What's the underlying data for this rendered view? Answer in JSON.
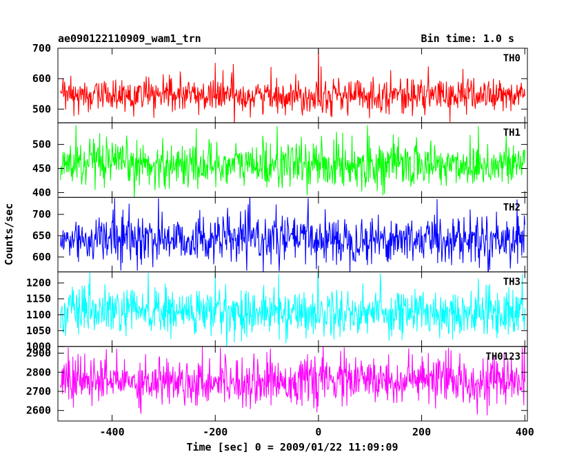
{
  "header": {
    "title": "ae090122110909_wam1_trn",
    "bin_time": "Bin time: 1.0 s"
  },
  "chart_data": {
    "type": "line",
    "title": "ae090122110909_wam1_trn",
    "xlabel": "Time [sec] 0 = 2009/01/22 11:09:09",
    "ylabel": "Counts/sec",
    "xlim": [
      -505,
      405
    ],
    "x_ticks": [
      -400,
      -200,
      0,
      200,
      400
    ],
    "x_start": -500,
    "x_end": 400,
    "x_step": 1,
    "grid": false,
    "panels": [
      {
        "name": "TH0",
        "color": "#ff0000",
        "ylim": [
          455,
          700
        ],
        "y_ticks": [
          500,
          600,
          700
        ],
        "mean": 545,
        "sigma": 28,
        "spikes": [
          {
            "x": -200,
            "y": 652
          },
          {
            "x": -165,
            "y": 648
          },
          {
            "x": 0,
            "y": 700
          },
          {
            "x": 5,
            "y": 640
          },
          {
            "x": 280,
            "y": 632
          },
          {
            "x": 140,
            "y": 628
          }
        ]
      },
      {
        "name": "TH1",
        "color": "#00ff00",
        "ylim": [
          390,
          545
        ],
        "y_ticks": [
          400,
          450,
          500
        ],
        "mean": 458,
        "sigma": 24,
        "spikes": [
          {
            "x": -470,
            "y": 540
          },
          {
            "x": -80,
            "y": 538
          },
          {
            "x": 95,
            "y": 540
          },
          {
            "x": 310,
            "y": 538
          }
        ]
      },
      {
        "name": "TH2",
        "color": "#0000ff",
        "ylim": [
          565,
          740
        ],
        "y_ticks": [
          600,
          650,
          700
        ],
        "mean": 642,
        "sigma": 28,
        "spikes": [
          {
            "x": -395,
            "y": 738
          },
          {
            "x": -310,
            "y": 738
          },
          {
            "x": -20,
            "y": 738
          },
          {
            "x": 230,
            "y": 736
          },
          {
            "x": 385,
            "y": 735
          }
        ]
      },
      {
        "name": "TH3",
        "color": "#00ffff",
        "ylim": [
          1000,
          1235
        ],
        "y_ticks": [
          1000,
          1050,
          1100,
          1150,
          1200
        ],
        "mean": 1108,
        "sigma": 38,
        "spikes": [
          {
            "x": -330,
            "y": 1232
          },
          {
            "x": -200,
            "y": 1230
          },
          {
            "x": 120,
            "y": 1230
          },
          {
            "x": 395,
            "y": 1228
          }
        ]
      },
      {
        "name": "TH0123",
        "color": "#ff00ff",
        "ylim": [
          2545,
          2935
        ],
        "y_ticks": [
          2600,
          2700,
          2800,
          2900
        ],
        "mean": 2755,
        "sigma": 62,
        "spikes": [
          {
            "x": -485,
            "y": 2930
          },
          {
            "x": -190,
            "y": 2928
          },
          {
            "x": 50,
            "y": 2930
          },
          {
            "x": 175,
            "y": 2925
          },
          {
            "x": 395,
            "y": 2930
          }
        ]
      }
    ]
  }
}
